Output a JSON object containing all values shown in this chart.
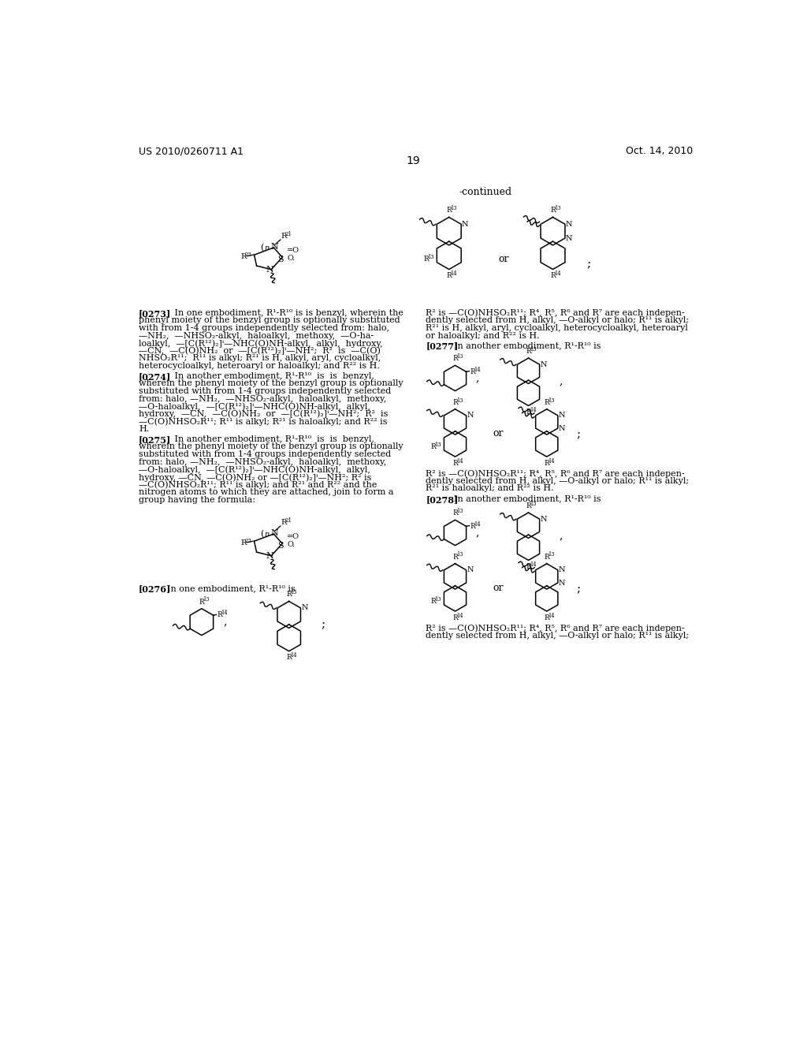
{
  "page_number": "19",
  "header_left": "US 2010/0260711 A1",
  "header_right": "Oct. 14, 2010",
  "bg": "#ffffff",
  "tc": "#000000",
  "continued": "-continued",
  "lm": 62,
  "col2": 532,
  "rh": 12.5,
  "fs_body": 8.0,
  "fs_small": 7.2
}
